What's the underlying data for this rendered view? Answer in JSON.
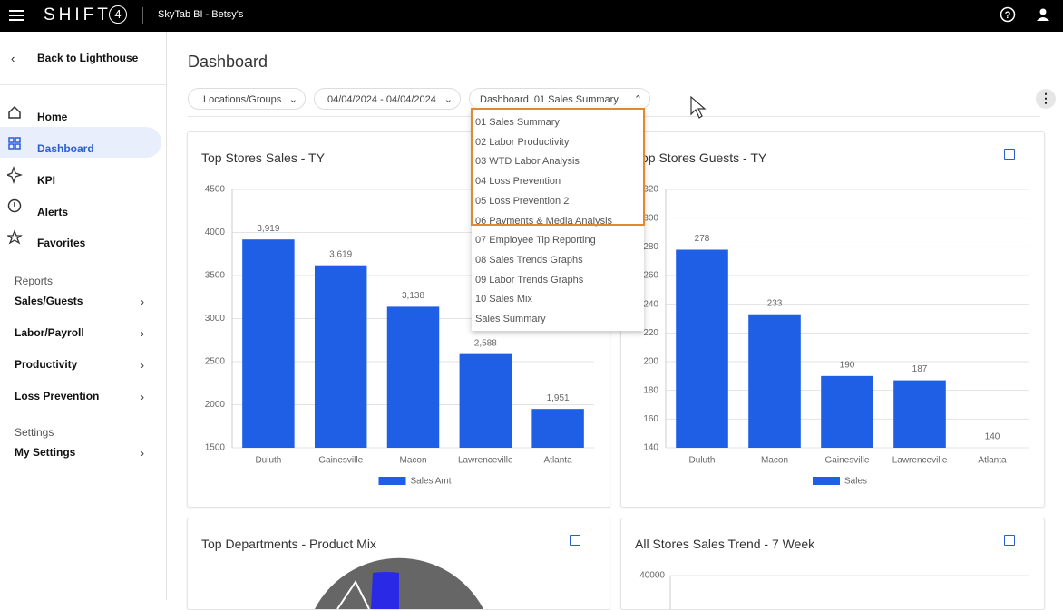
{
  "header": {
    "brand": "SHIFT",
    "brand_mark": "4",
    "app": "SkyTab BI - Betsy's"
  },
  "sidebar": {
    "back": "Back to Lighthouse",
    "nav": [
      "Home",
      "Dashboard",
      "KPI",
      "Alerts",
      "Favorites"
    ],
    "reports_label": "Reports",
    "reports": [
      "Sales/Guests",
      "Labor/Payroll",
      "Productivity",
      "Loss Prevention"
    ],
    "settings_label": "Settings",
    "settings": [
      "My Settings"
    ]
  },
  "main": {
    "title": "Dashboard",
    "filters": {
      "locations": "Locations/Groups",
      "dates": "04/04/2024 - 04/04/2024",
      "dashboard_label": "Dashboard",
      "dashboard_value": "01 Sales Summary"
    },
    "dropdown": [
      "01 Sales Summary",
      "02 Labor Productivity",
      "03 WTD Labor Analysis",
      "04 Loss Prevention",
      "05 Loss Prevention 2",
      "06 Payments & Media Analysis",
      "07 Employee Tip Reporting",
      "08 Sales Trends Graphs",
      "09 Labor Trends Graphs",
      "10 Sales Mix",
      "Sales Summary"
    ]
  },
  "cards": [
    {
      "title": "Top Stores Sales - TY",
      "chart": {
        "type": "bar",
        "categories": [
          "Duluth",
          "Gainesville",
          "Macon",
          "Lawrenceville",
          "Atlanta"
        ],
        "series": [
          {
            "name": "Sales Amt",
            "color": "#1f5fe6",
            "values": [
              3919,
              3619,
              3138,
              2588,
              1951
            ],
            "value_labels": [
              "3,919",
              "3,619",
              "3,138",
              "2,588",
              "1,951"
            ]
          }
        ],
        "ylim": [
          1500,
          4500
        ],
        "yticks": [
          1500,
          2000,
          2500,
          3000,
          3500,
          4000,
          4500
        ],
        "grid": true
      }
    },
    {
      "title": "Top Stores Guests - TY",
      "chart": {
        "type": "bar",
        "categories": [
          "Duluth",
          "Macon",
          "Gainesville",
          "Lawrenceville",
          "Atlanta"
        ],
        "series": [
          {
            "name": "Sales",
            "color": "#1f5fe6",
            "values": [
              278,
              233,
              190,
              187,
              140
            ]
          }
        ],
        "ylim": [
          140,
          320
        ],
        "yticks": [
          140,
          160,
          180,
          200,
          220,
          240,
          260,
          280,
          300,
          320
        ],
        "grid": true
      }
    },
    {
      "title": "Top Departments - Product Mix",
      "chart": {
        "type": "pie"
      }
    },
    {
      "title": "All Stores Sales Trend - 7 Week",
      "chart": {
        "type": "line",
        "yticks": [
          40000
        ],
        "grid": true
      }
    }
  ]
}
